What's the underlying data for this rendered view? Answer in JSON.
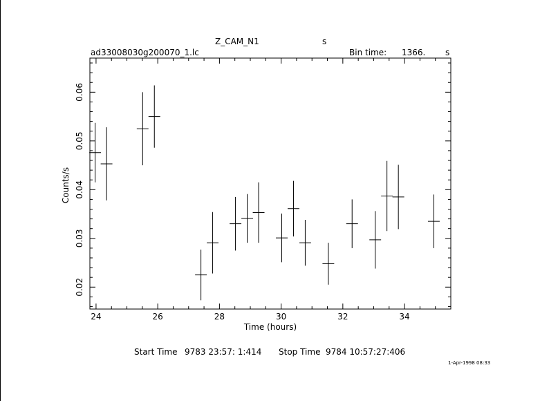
{
  "header": {
    "object": "Z_CAM_N1",
    "object_unit": "s",
    "filename": "ad33008030g200070_1.lc",
    "bin_time_label": "Bin time:",
    "bin_time_value": "1366.",
    "bin_time_unit": "s"
  },
  "footer": {
    "start_time_label": "Start Time",
    "start_time_value": "9783 23:57: 1:414",
    "stop_time_label": "Stop Time",
    "stop_time_value": "9784 10:57:27:406",
    "plot_date": "1-Apr-1998 08:33"
  },
  "chart_data": {
    "type": "scatter",
    "xlabel": "Time (hours)",
    "ylabel": "Counts/s",
    "xlim": [
      23.8,
      35.5
    ],
    "ylim": [
      0.0155,
      0.067
    ],
    "x_ticks": [
      24,
      26,
      28,
      30,
      32,
      34
    ],
    "y_ticks": [
      0.02,
      0.03,
      0.04,
      0.05,
      0.06
    ],
    "grid": false,
    "points": [
      {
        "x": 23.97,
        "y": 0.0476,
        "xerr": 0.19,
        "yerr": 0.0061
      },
      {
        "x": 24.34,
        "y": 0.0453,
        "xerr": 0.19,
        "yerr": 0.0075
      },
      {
        "x": 25.51,
        "y": 0.0525,
        "xerr": 0.19,
        "yerr": 0.0075
      },
      {
        "x": 25.89,
        "y": 0.055,
        "xerr": 0.19,
        "yerr": 0.0064
      },
      {
        "x": 27.4,
        "y": 0.0225,
        "xerr": 0.19,
        "yerr": 0.0052
      },
      {
        "x": 27.78,
        "y": 0.0291,
        "xerr": 0.19,
        "yerr": 0.0063
      },
      {
        "x": 28.52,
        "y": 0.033,
        "xerr": 0.19,
        "yerr": 0.0055
      },
      {
        "x": 28.9,
        "y": 0.0341,
        "xerr": 0.19,
        "yerr": 0.005
      },
      {
        "x": 29.27,
        "y": 0.0353,
        "xerr": 0.19,
        "yerr": 0.0062
      },
      {
        "x": 30.02,
        "y": 0.0301,
        "xerr": 0.19,
        "yerr": 0.005
      },
      {
        "x": 30.4,
        "y": 0.0361,
        "xerr": 0.19,
        "yerr": 0.0057
      },
      {
        "x": 30.78,
        "y": 0.0291,
        "xerr": 0.19,
        "yerr": 0.0047
      },
      {
        "x": 31.53,
        "y": 0.0248,
        "xerr": 0.19,
        "yerr": 0.0043
      },
      {
        "x": 32.3,
        "y": 0.033,
        "xerr": 0.19,
        "yerr": 0.005
      },
      {
        "x": 33.05,
        "y": 0.0297,
        "xerr": 0.19,
        "yerr": 0.0059
      },
      {
        "x": 33.43,
        "y": 0.0387,
        "xerr": 0.19,
        "yerr": 0.0072
      },
      {
        "x": 33.8,
        "y": 0.0385,
        "xerr": 0.19,
        "yerr": 0.0066
      },
      {
        "x": 34.95,
        "y": 0.0335,
        "xerr": 0.19,
        "yerr": 0.0055
      }
    ]
  }
}
